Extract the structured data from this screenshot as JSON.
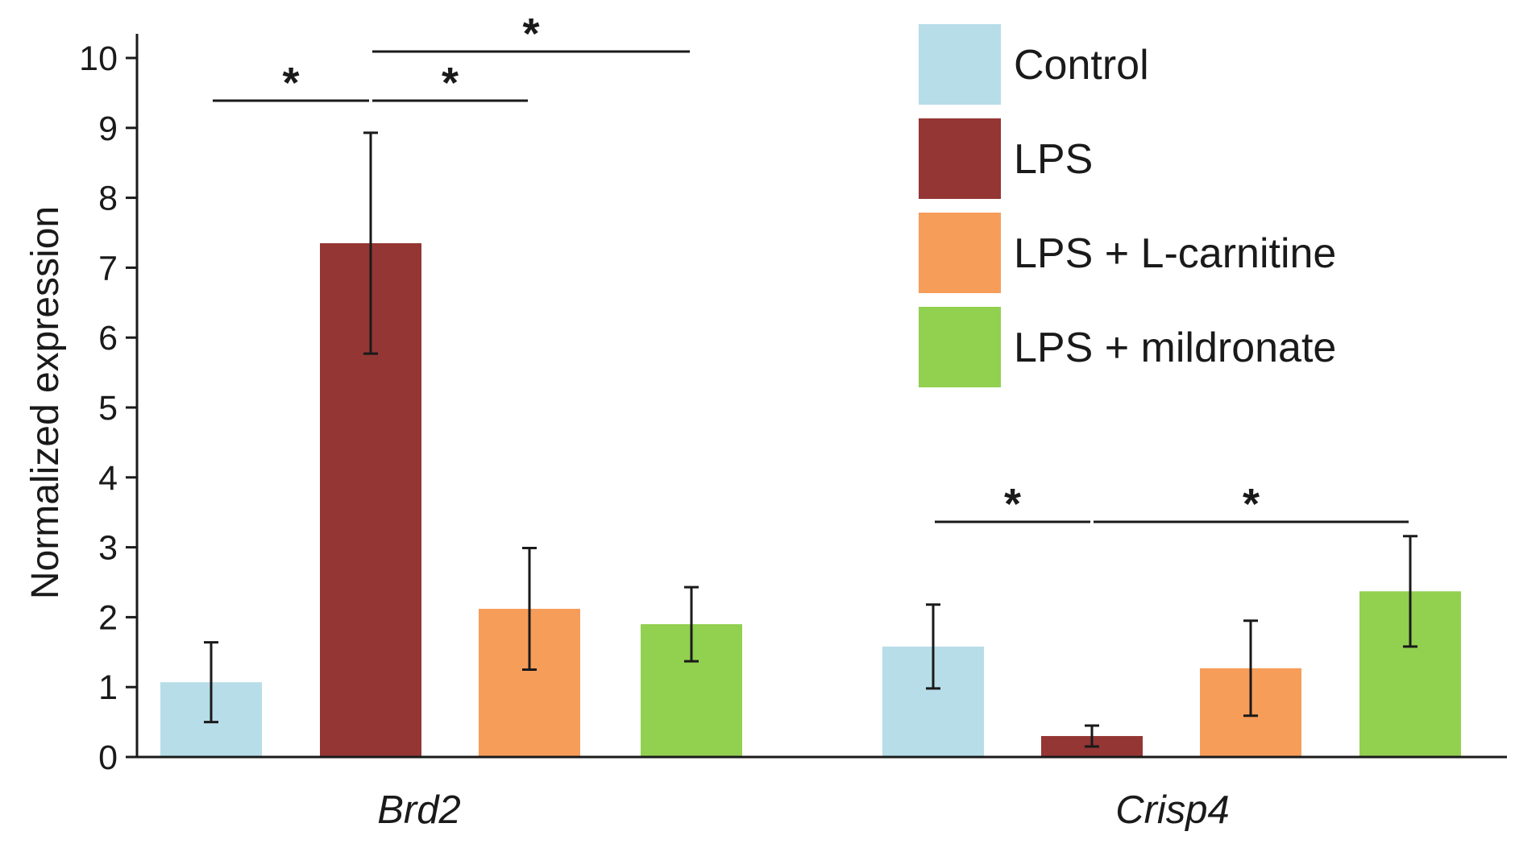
{
  "chart_data": {
    "type": "bar",
    "ylabel": "Normalized expression",
    "ylim": [
      0,
      10
    ],
    "yticks": [
      "0",
      "1",
      "2",
      "3",
      "4",
      "5",
      "6",
      "7",
      "8",
      "9",
      "10"
    ],
    "categories": [
      "Brd2",
      "Crisp4"
    ],
    "series": [
      {
        "name": "Control",
        "color": "#b7dde8",
        "values": [
          1.07,
          1.58
        ],
        "errors": [
          0.57,
          0.6
        ]
      },
      {
        "name": "LPS",
        "color": "#943634",
        "values": [
          7.35,
          0.3
        ],
        "errors": [
          1.58,
          0.15
        ]
      },
      {
        "name": "LPS + L-carnitine",
        "color": "#f79d5a",
        "values": [
          2.12,
          1.27
        ],
        "errors": [
          0.87,
          0.68
        ]
      },
      {
        "name": "LPS + mildronate",
        "color": "#92d050",
        "values": [
          1.9,
          2.37
        ],
        "errors": [
          0.53,
          0.79
        ]
      }
    ],
    "legend_position": "top-right",
    "significance": [
      {
        "category": 0,
        "from": 0,
        "to": 1,
        "label": "*"
      },
      {
        "category": 0,
        "from": 1,
        "to": 2,
        "label": "*"
      },
      {
        "category": 0,
        "from": 1,
        "to": 3,
        "label": "*"
      },
      {
        "category": 1,
        "from": 0,
        "to": 1,
        "label": "*"
      },
      {
        "category": 1,
        "from": 1,
        "to": 3,
        "label": "*"
      }
    ]
  }
}
